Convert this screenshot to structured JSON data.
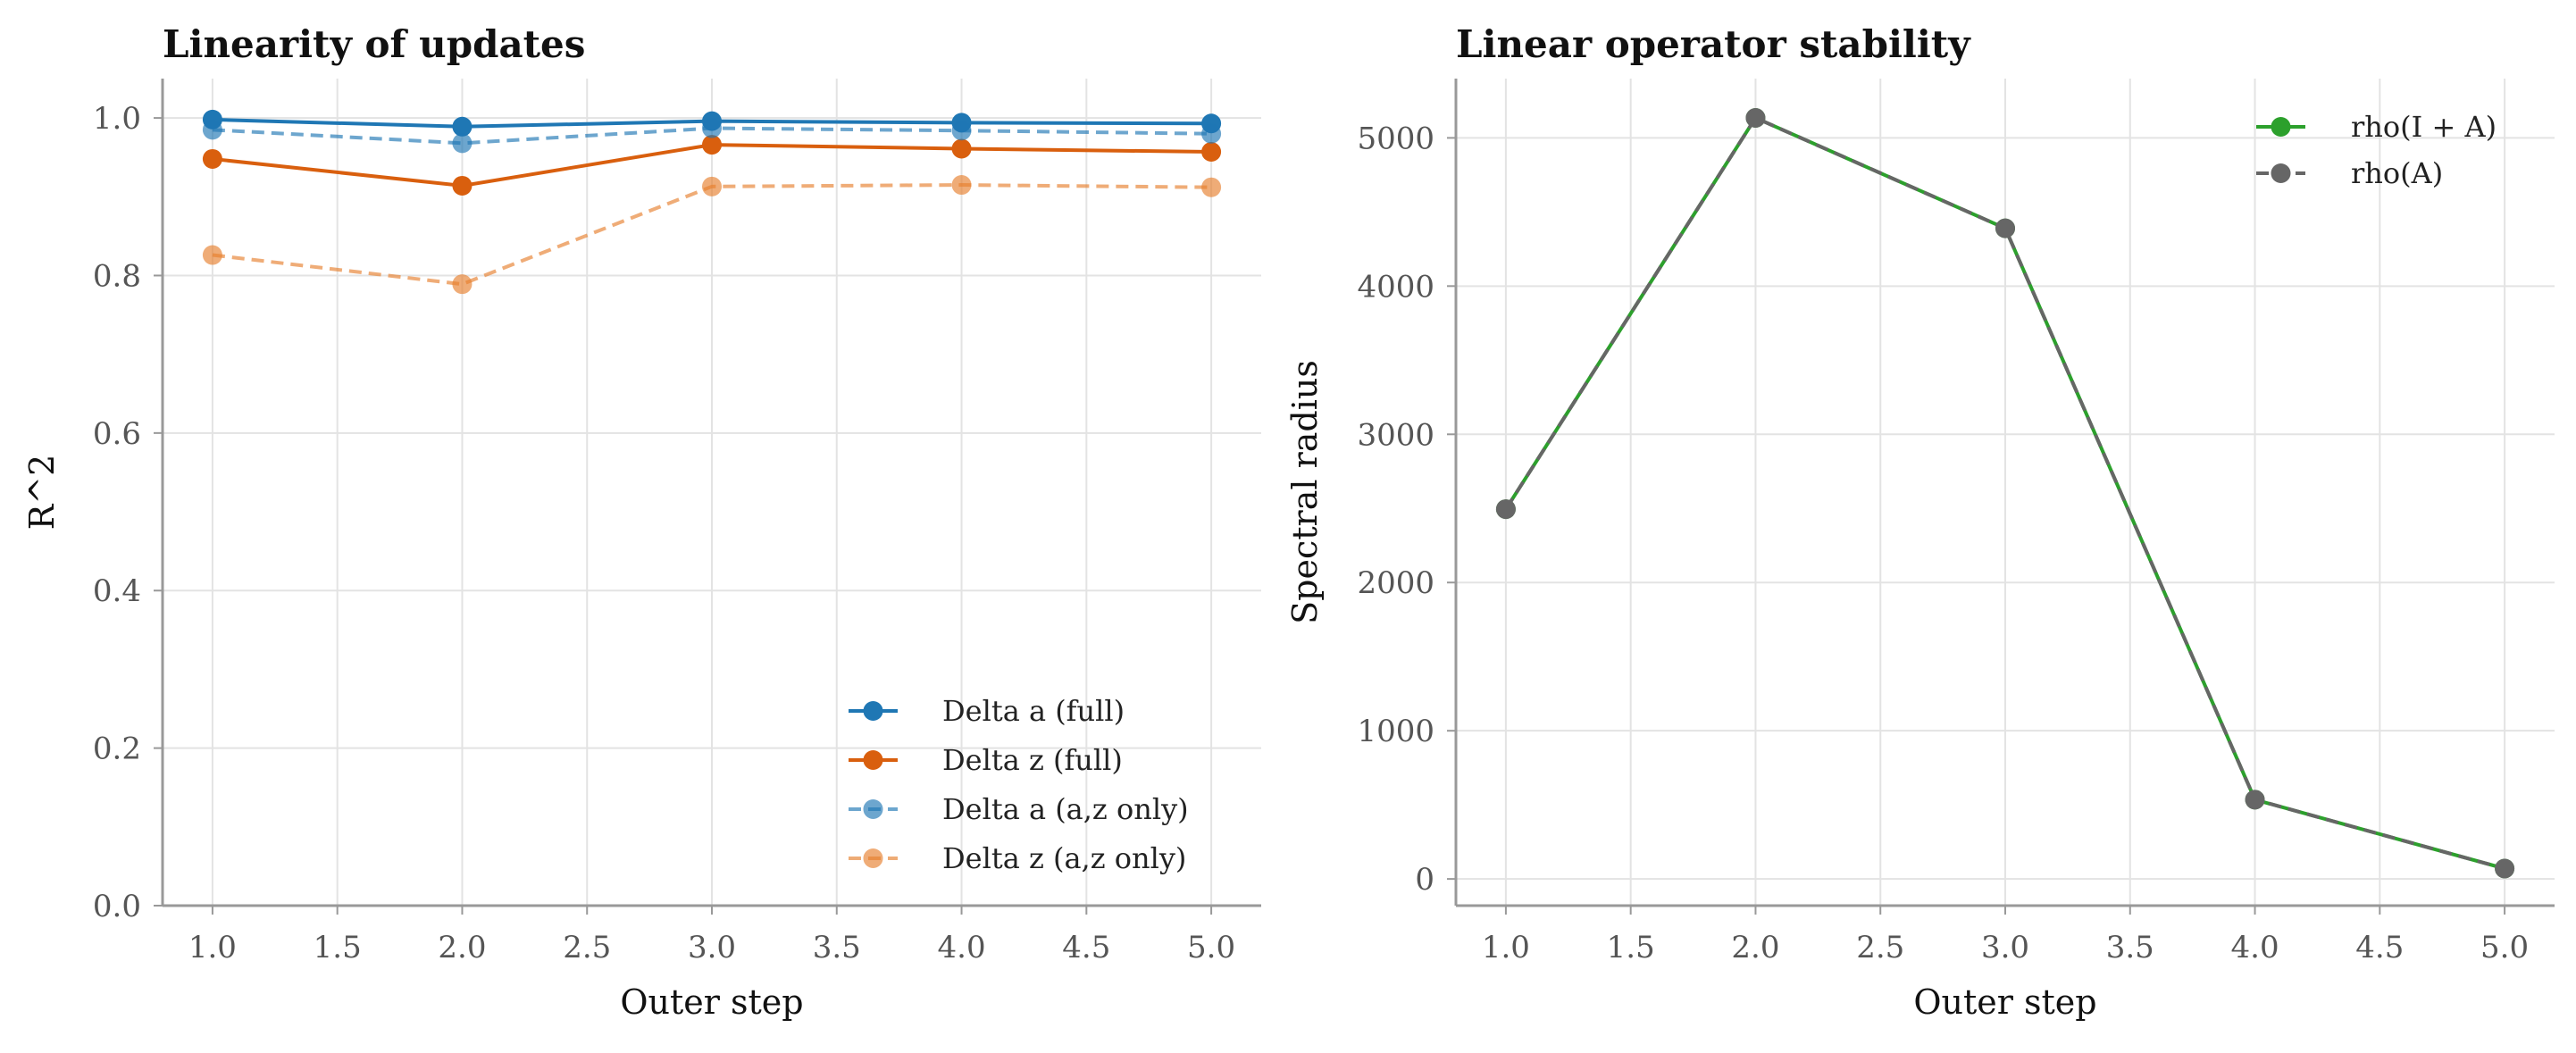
{
  "chart_data": [
    {
      "type": "line",
      "title": "Linearity of updates",
      "xlabel": "Outer step",
      "ylabel": "R^2",
      "x": [
        1.0,
        2.0,
        3.0,
        4.0,
        5.0
      ],
      "xlim": [
        0.8,
        5.2
      ],
      "ylim": [
        0.0,
        1.05
      ],
      "xticks": [
        "1.0",
        "1.5",
        "2.0",
        "2.5",
        "3.0",
        "3.5",
        "4.0",
        "4.5",
        "5.0"
      ],
      "yticks": [
        "0.0",
        "0.2",
        "0.4",
        "0.6",
        "0.8",
        "1.0"
      ],
      "grid": true,
      "legend_position": "lower-right",
      "series": [
        {
          "name": "Delta a (full)",
          "values": [
            0.998,
            0.989,
            0.996,
            0.994,
            0.993
          ],
          "color": "#1f77b4",
          "dashed": false,
          "faded": false
        },
        {
          "name": "Delta z (full)",
          "values": [
            0.948,
            0.914,
            0.966,
            0.961,
            0.957
          ],
          "color": "#d95f0e",
          "dashed": false,
          "faded": false
        },
        {
          "name": "Delta a (a,z only)",
          "values": [
            0.985,
            0.968,
            0.987,
            0.984,
            0.98
          ],
          "color": "#1f77b4",
          "dashed": true,
          "faded": true
        },
        {
          "name": "Delta z (a,z only)",
          "values": [
            0.826,
            0.789,
            0.913,
            0.915,
            0.912
          ],
          "color": "#e6802e",
          "dashed": true,
          "faded": true
        }
      ]
    },
    {
      "type": "line",
      "title": "Linear operator stability",
      "xlabel": "Outer step",
      "ylabel": "Spectral radius",
      "x": [
        1.0,
        2.0,
        3.0,
        4.0,
        5.0
      ],
      "xlim": [
        0.8,
        5.2
      ],
      "ylim": [
        -180,
        5400
      ],
      "xticks": [
        "1.0",
        "1.5",
        "2.0",
        "2.5",
        "3.0",
        "3.5",
        "4.0",
        "4.5",
        "5.0"
      ],
      "yticks": [
        "0",
        "1000",
        "2000",
        "3000",
        "4000",
        "5000"
      ],
      "grid": true,
      "legend_position": "top-right",
      "series": [
        {
          "name": "rho(I + A)",
          "values": [
            2495,
            5135,
            4390,
            535,
            70
          ],
          "color": "#2ca02c",
          "dashed": false,
          "faded": false
        },
        {
          "name": "rho(A)",
          "values": [
            2495,
            5135,
            4390,
            535,
            70
          ],
          "color": "#666666",
          "dashed": true,
          "faded": false
        }
      ]
    }
  ]
}
